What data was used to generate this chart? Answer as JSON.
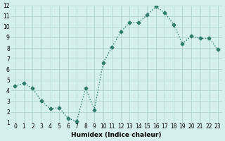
{
  "x": [
    0,
    1,
    2,
    3,
    4,
    5,
    6,
    7,
    8,
    9,
    10,
    11,
    12,
    13,
    14,
    15,
    16,
    17,
    18,
    19,
    20,
    21,
    22,
    23
  ],
  "y": [
    4.4,
    4.7,
    4.2,
    3.0,
    2.3,
    2.4,
    1.4,
    1.1,
    4.2,
    2.2,
    6.6,
    8.1,
    9.5,
    10.4,
    10.4,
    11.1,
    11.9,
    11.3,
    10.2,
    8.4,
    9.1,
    8.9,
    8.9,
    7.9
  ],
  "xlabel": "Humidex (Indice chaleur)",
  "ylim": [
    1,
    12
  ],
  "xlim": [
    0,
    23
  ],
  "yticks": [
    1,
    2,
    3,
    4,
    5,
    6,
    7,
    8,
    9,
    10,
    11,
    12
  ],
  "xticks": [
    0,
    1,
    2,
    3,
    4,
    5,
    6,
    7,
    8,
    9,
    10,
    11,
    12,
    13,
    14,
    15,
    16,
    17,
    18,
    19,
    20,
    21,
    22,
    23
  ],
  "line_color": "#2e7d6e",
  "marker": "D",
  "marker_size": 2.5,
  "bg_color": "#d4efed",
  "grid_color": "#b0d4d0",
  "title": ""
}
